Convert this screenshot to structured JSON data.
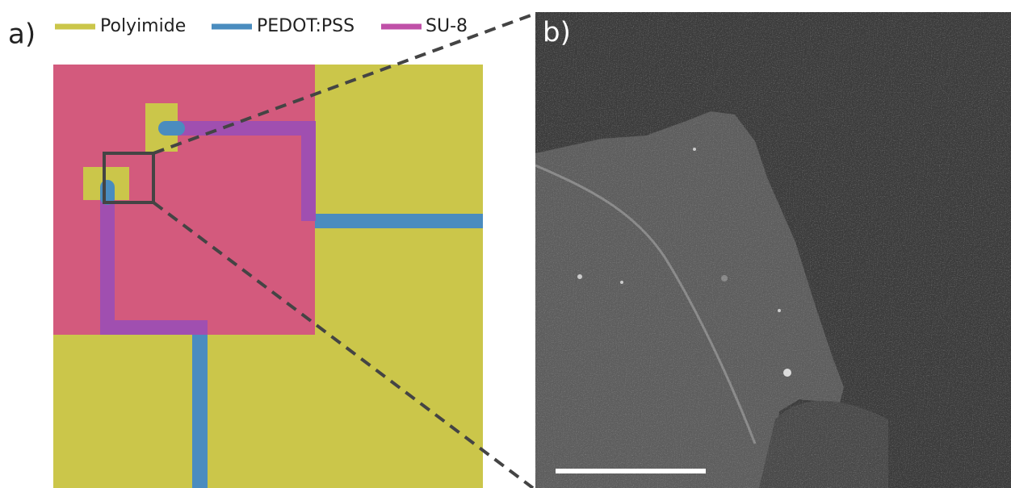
{
  "panel_a": {
    "label": "a)",
    "legend": [
      {
        "name": "Polyimide"
      },
      {
        "name": "PEDOT:PSS"
      },
      {
        "name": "SU-8"
      }
    ]
  },
  "panel_b": {
    "label": "b)"
  }
}
